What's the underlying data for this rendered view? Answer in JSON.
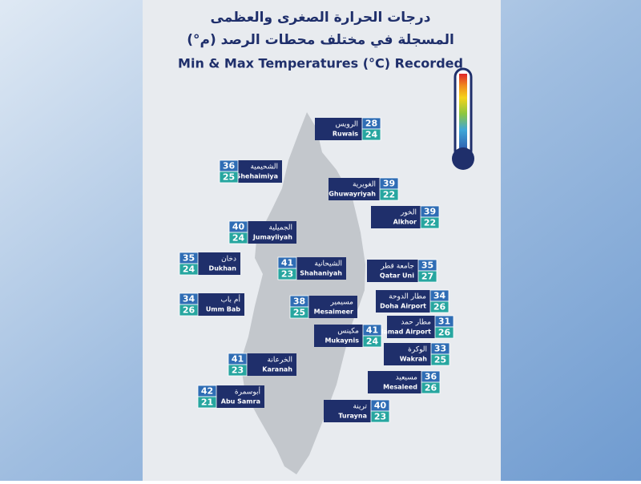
{
  "header": {
    "title_ar_1": "درجات الحرارة الصغرى والعظمى",
    "title_ar_2": "(°م) المسجلة في مختلف محطات الرصد",
    "title_en": "Min & Max Temperatures (°C) Recorded"
  },
  "stations": [
    {
      "ar": "الرويس",
      "en": "Ruwais",
      "max": "28",
      "min": "24"
    },
    {
      "ar": "الشحيمية",
      "en": "Shehaimiya",
      "max": "36",
      "min": "25"
    },
    {
      "ar": "الغويرية",
      "en": "Ghuwayriyah",
      "max": "39",
      "min": "22"
    },
    {
      "ar": "الخور",
      "en": "Alkhor",
      "max": "39",
      "min": "22"
    },
    {
      "ar": "الجميلية",
      "en": "Jumayliyah",
      "max": "40",
      "min": "24"
    },
    {
      "ar": "دخان",
      "en": "Dukhan",
      "max": "35",
      "min": "24"
    },
    {
      "ar": "الشيحانية",
      "en": "Shahaniyah",
      "max": "41",
      "min": "23"
    },
    {
      "ar": "جامعة قطر",
      "en": "Qatar Uni",
      "max": "35",
      "min": "27"
    },
    {
      "ar": "أم باب",
      "en": "Umm Bab",
      "max": "34",
      "min": "26"
    },
    {
      "ar": "مسيمير",
      "en": "Mesaimeer",
      "max": "38",
      "min": "25"
    },
    {
      "ar": "مطار الدوحة",
      "en": "Doha Airport",
      "max": "34",
      "min": "26"
    },
    {
      "ar": "مطار حمد",
      "en": "Hamad Airport",
      "max": "31",
      "min": "26"
    },
    {
      "ar": "مكينس",
      "en": "Mukaynis",
      "max": "41",
      "min": "24"
    },
    {
      "ar": "الوكرة",
      "en": "Wakrah",
      "max": "33",
      "min": "25"
    },
    {
      "ar": "الخرعانة",
      "en": "Karanah",
      "max": "41",
      "min": "23"
    },
    {
      "ar": "مسيعيد",
      "en": "Mesaleed",
      "max": "36",
      "min": "26"
    },
    {
      "ar": "أبوسمرة",
      "en": "Abu Samra",
      "max": "42",
      "min": "21"
    },
    {
      "ar": "ترينة",
      "en": "Turayna",
      "max": "40",
      "min": "23"
    }
  ]
}
